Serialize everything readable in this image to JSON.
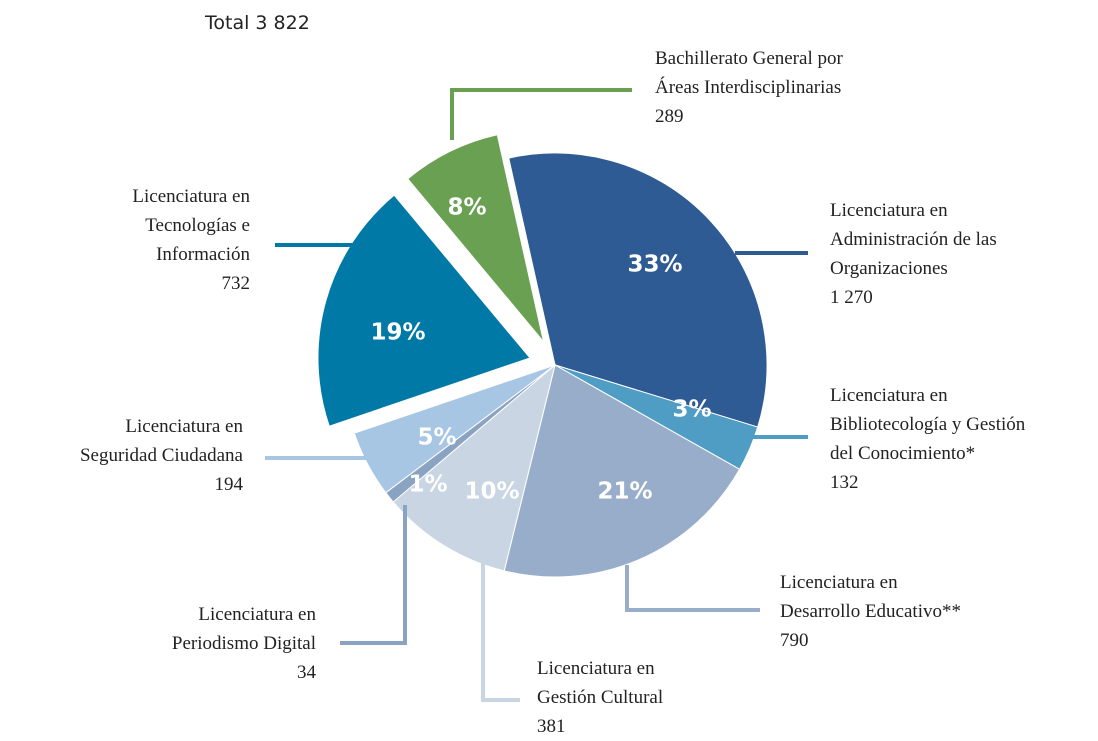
{
  "chart_data": {
    "type": "pie",
    "title": "Total  3 822",
    "categories": [
      "Licenciatura en\nAdministración de las\nOrganizaciones",
      "Licenciatura en\nBibliotecología y Gestión\ndel Conocimiento*",
      "Licenciatura en\nDesarrollo Educativo**",
      "Licenciatura en\nGestión Cultural",
      "Licenciatura en\nPeriodismo Digital",
      "Licenciatura en\nSeguridad Ciudadana",
      "Licenciatura en\nTecnologías e\nInformación",
      "Bachillerato General por\nÁreas Interdisciplinarias"
    ],
    "values": [
      1270,
      132,
      790,
      381,
      34,
      194,
      732,
      289
    ],
    "value_labels": [
      "1 270",
      "132",
      "790",
      "381",
      "34",
      "194",
      "732",
      "289"
    ],
    "percentages": [
      33,
      3,
      21,
      10,
      1,
      5,
      19,
      8
    ],
    "percentage_labels": [
      "33%",
      "3%",
      "21%",
      "10%",
      "1%",
      "5%",
      "19%",
      "8%"
    ],
    "colors": [
      "#2e5b93",
      "#4f9dc4",
      "#98adc9",
      "#c9d5e3",
      "#8aa3c2",
      "#a7c6e3",
      "#0079a6",
      "#69a051"
    ],
    "exploded": [
      false,
      false,
      false,
      false,
      false,
      false,
      true,
      true
    ]
  }
}
